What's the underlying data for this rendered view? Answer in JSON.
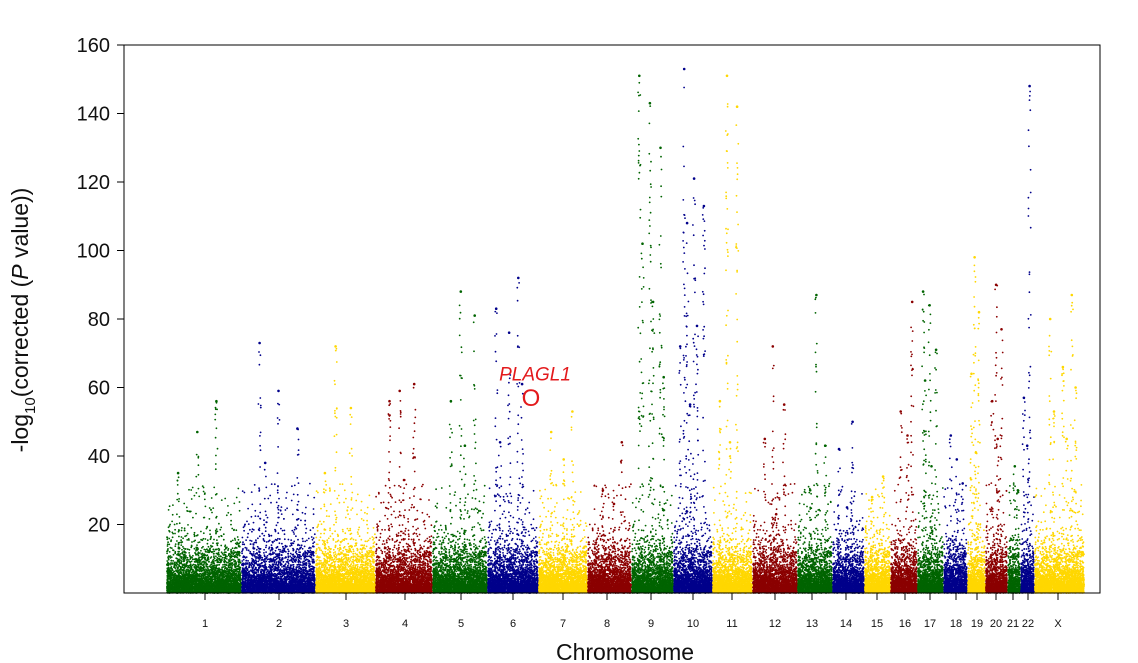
{
  "chart_data": {
    "type": "scatter",
    "xlabel": "Chromosome",
    "ylabel_prefix": "-log",
    "ylabel_sub": "10",
    "ylabel_suffix_a": "(corrected (",
    "ylabel_italic": "P",
    "ylabel_suffix_b": " value))",
    "ylim": [
      0,
      160
    ],
    "yticks": [
      20,
      40,
      60,
      80,
      100,
      120,
      140,
      160
    ],
    "grid": false,
    "legend": "none",
    "colors": [
      "#006400",
      "#00008B",
      "#FFD700",
      "#8B0000"
    ],
    "annotation": {
      "label": "PLAGL1",
      "marker": "O",
      "chromosome": "6",
      "y": 57,
      "color": "#e31a1c"
    },
    "chromosomes": [
      {
        "label": "1",
        "color": "#006400",
        "peaks": [
          35,
          47,
          56
        ]
      },
      {
        "label": "2",
        "color": "#00008B",
        "peaks": [
          73,
          59,
          48,
          38
        ]
      },
      {
        "label": "3",
        "color": "#FFD700",
        "peaks": [
          72,
          54,
          35
        ]
      },
      {
        "label": "4",
        "color": "#8B0000",
        "peaks": [
          59,
          61,
          56,
          33
        ]
      },
      {
        "label": "5",
        "color": "#006400",
        "peaks": [
          88,
          81,
          56,
          43
        ]
      },
      {
        "label": "6",
        "color": "#00008B",
        "peaks": [
          92,
          83,
          76,
          61,
          44
        ]
      },
      {
        "label": "7",
        "color": "#FFD700",
        "peaks": [
          53,
          47,
          39
        ]
      },
      {
        "label": "8",
        "color": "#8B0000",
        "peaks": [
          44,
          30,
          26
        ]
      },
      {
        "label": "9",
        "color": "#006400",
        "peaks": [
          151,
          143,
          130,
          102,
          85,
          63
        ]
      },
      {
        "label": "10",
        "color": "#00008B",
        "peaks": [
          153,
          121,
          113,
          108,
          78,
          72,
          55
        ]
      },
      {
        "label": "11",
        "color": "#FFD700",
        "peaks": [
          151,
          142,
          56,
          44
        ]
      },
      {
        "label": "12",
        "color": "#8B0000",
        "peaks": [
          72,
          55,
          45,
          23
        ]
      },
      {
        "label": "13",
        "color": "#006400",
        "peaks": [
          87,
          43,
          30
        ]
      },
      {
        "label": "14",
        "color": "#00008B",
        "peaks": [
          50,
          42,
          25
        ]
      },
      {
        "label": "15",
        "color": "#FFD700",
        "peaks": [
          34,
          28
        ]
      },
      {
        "label": "16",
        "color": "#8B0000",
        "peaks": [
          85,
          53,
          46
        ]
      },
      {
        "label": "17",
        "color": "#006400",
        "peaks": [
          88,
          84,
          71,
          62,
          37
        ]
      },
      {
        "label": "18",
        "color": "#00008B",
        "peaks": [
          46,
          39,
          32
        ]
      },
      {
        "label": "19",
        "color": "#FFD700",
        "peaks": [
          98,
          82,
          64,
          41
        ]
      },
      {
        "label": "20",
        "color": "#8B0000",
        "peaks": [
          90,
          77,
          56,
          45
        ]
      },
      {
        "label": "21",
        "color": "#006400",
        "peaks": [
          37,
          30
        ]
      },
      {
        "label": "22",
        "color": "#00008B",
        "peaks": [
          148,
          57,
          43
        ]
      },
      {
        "label": "X",
        "color": "#FFD700",
        "peaks": [
          87,
          80,
          66,
          60,
          53,
          45
        ]
      }
    ]
  }
}
